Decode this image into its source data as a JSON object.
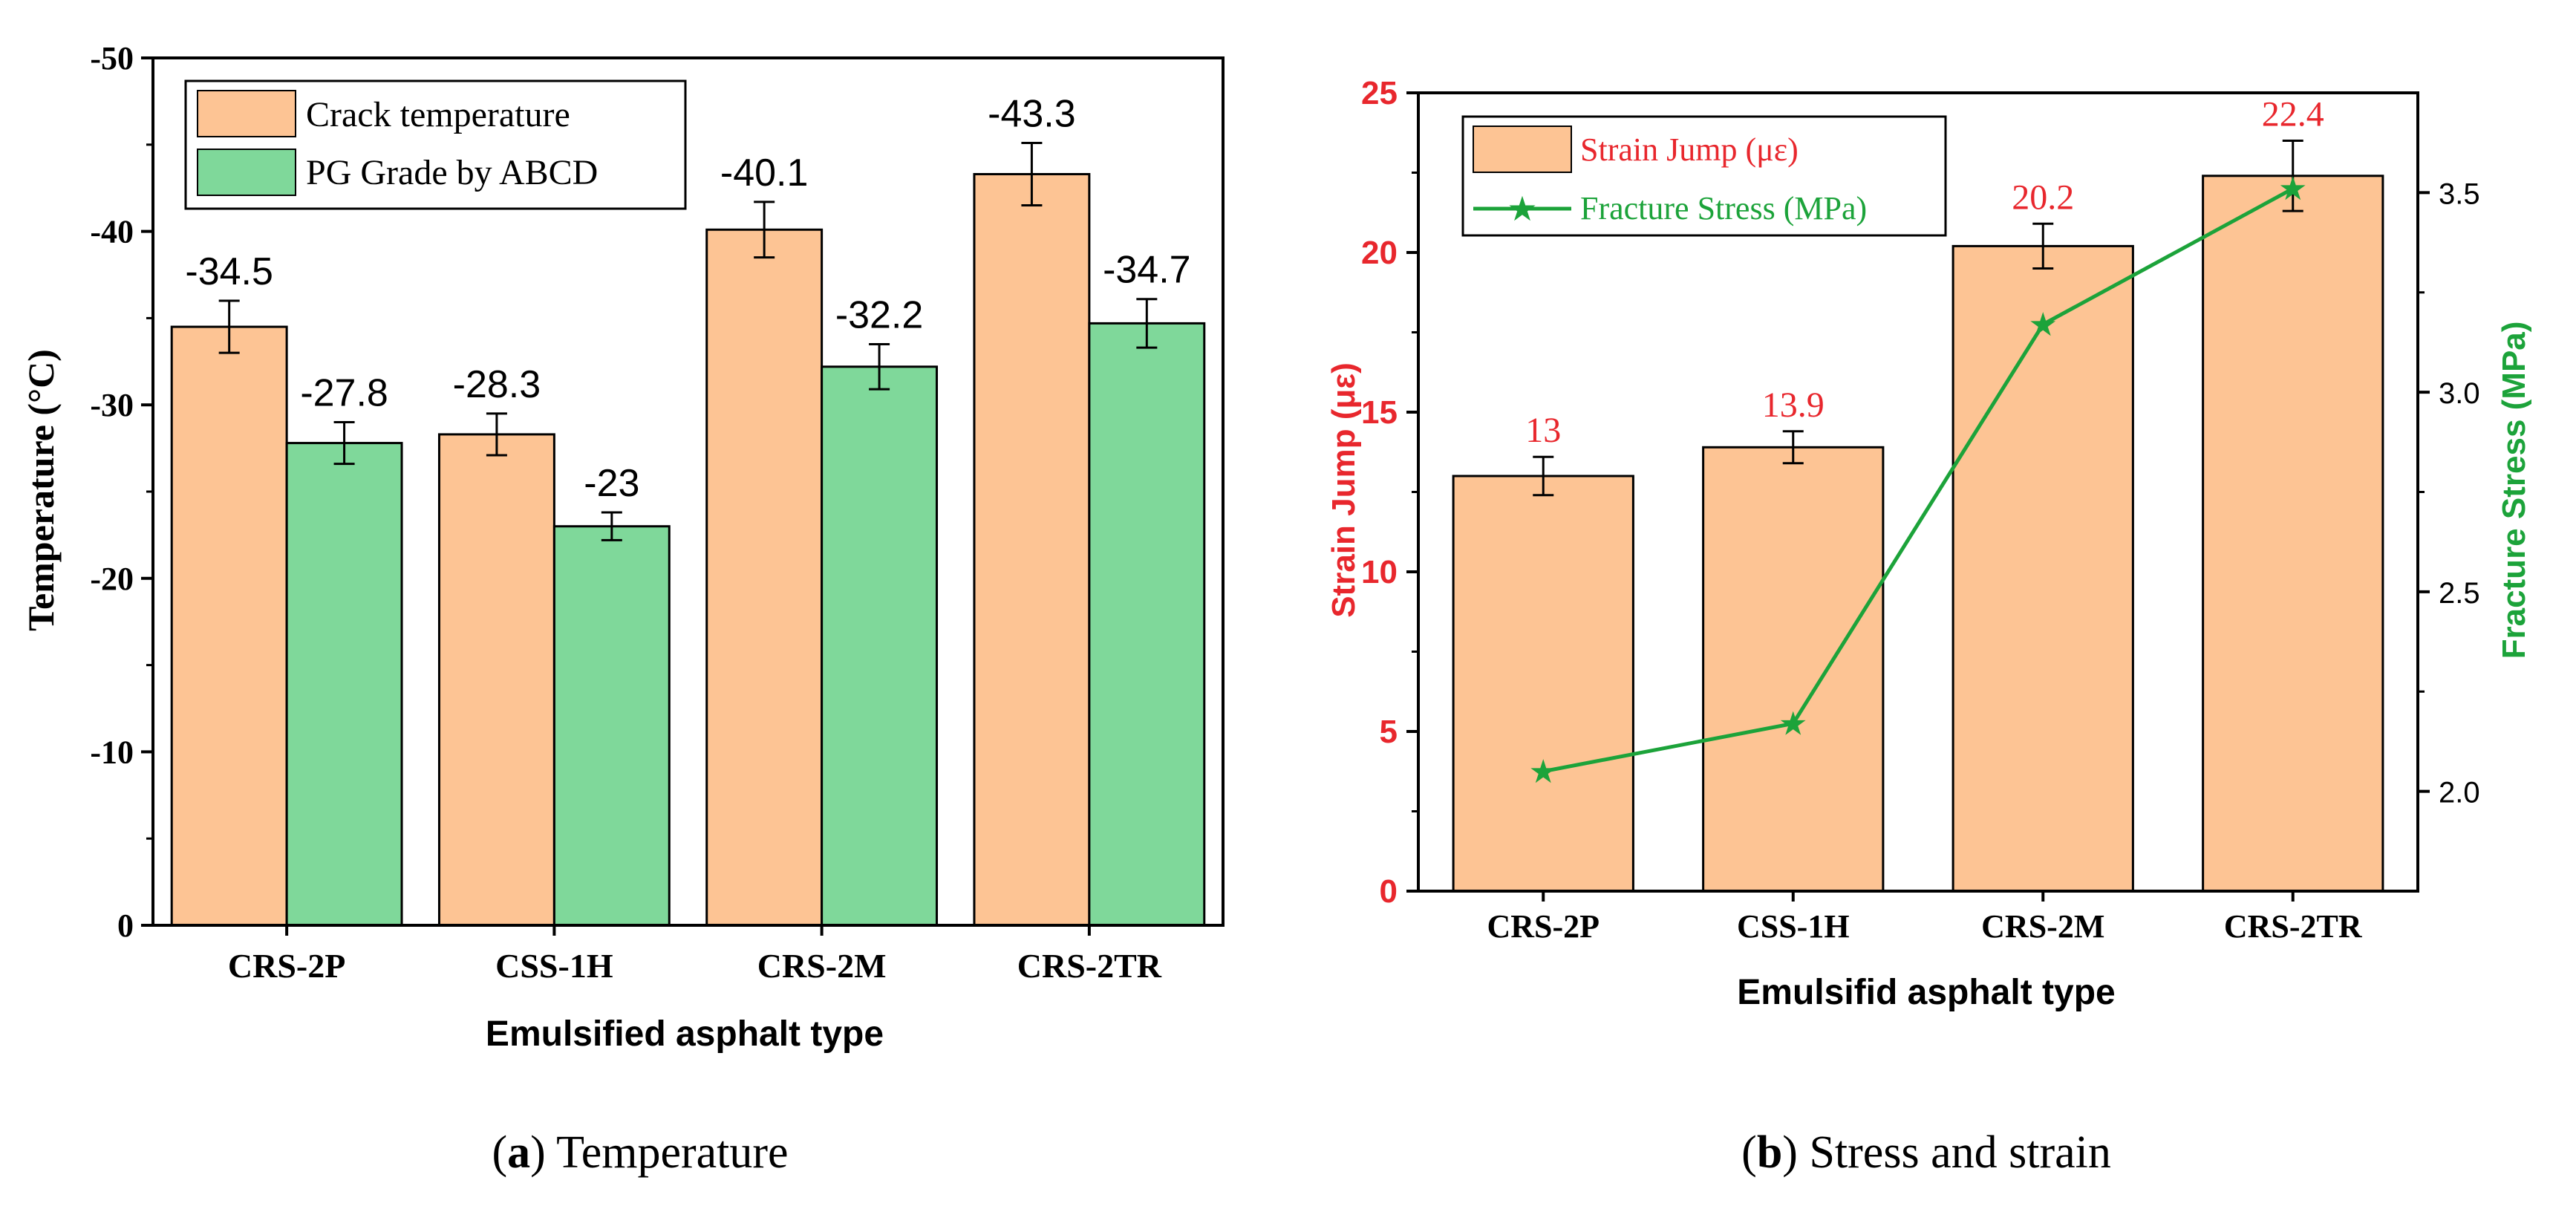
{
  "chart_data": [
    {
      "type": "bar",
      "title": "",
      "xlabel": "Emulsified asphalt type",
      "ylabel": "Temperature (°C)",
      "ylim": [
        0,
        -50
      ],
      "y_ticks": [
        "0",
        "-10",
        "-20",
        "-30",
        "-40",
        "-50"
      ],
      "y_tick_values": [
        0,
        -10,
        -20,
        -30,
        -40,
        -50
      ],
      "categories": [
        "CRS-2P",
        "CSS-1H",
        "CRS-2M",
        "CRS-2TR"
      ],
      "series": [
        {
          "name": "Crack temperature",
          "values": [
            -34.5,
            -28.3,
            -40.1,
            -43.3
          ],
          "labels": [
            "-34.5",
            "-28.3",
            "-40.1",
            "-43.3"
          ],
          "errors": [
            1.5,
            1.2,
            1.6,
            1.8
          ],
          "color": "#FDC494"
        },
        {
          "name": "PG Grade by ABCD",
          "values": [
            -27.8,
            -23,
            -32.2,
            -34.7
          ],
          "labels": [
            "-27.8",
            "-23",
            "-32.2",
            "-34.7"
          ],
          "errors": [
            1.2,
            0.8,
            1.3,
            1.4
          ],
          "color": "#7FD89A"
        }
      ],
      "legend_position": "top-left",
      "caption_bold": "a",
      "caption_text": " Temperature"
    },
    {
      "type": "bar",
      "title": "",
      "xlabel": "Emulsifid asphalt type",
      "ylabel": "Strain Jump (με)",
      "y2label": "Fracture Stress (MPa)",
      "ylim": [
        0,
        25
      ],
      "y_ticks": [
        "0",
        "5",
        "10",
        "15",
        "20",
        "25"
      ],
      "y_tick_values": [
        0,
        5,
        10,
        15,
        20,
        25
      ],
      "y2lim": [
        1.75,
        3.75
      ],
      "y2_ticks": [
        "2.0",
        "2.5",
        "3.0",
        "3.5"
      ],
      "y2_tick_values": [
        2.0,
        2.5,
        3.0,
        3.5
      ],
      "categories": [
        "CRS-2P",
        "CSS-1H",
        "CRS-2M",
        "CRS-2TR"
      ],
      "series": [
        {
          "name": "Strain Jump (με)",
          "type": "bar",
          "values": [
            13,
            13.9,
            20.2,
            22.4
          ],
          "labels": [
            "13",
            "13.9",
            "20.2",
            "22.4"
          ],
          "errors": [
            0.6,
            0.5,
            0.7,
            1.1
          ],
          "color": "#FDC494"
        },
        {
          "name": "Fracture Stress (MPa)",
          "type": "line",
          "axis": "right",
          "values": [
            2.05,
            2.17,
            3.17,
            3.51
          ],
          "color": "#1CA33A"
        }
      ],
      "label_color": "#E8272D",
      "left_axis_color": "#E8272D",
      "right_axis_color": "#1CA33A",
      "legend_position": "top-left",
      "caption_bold": "b",
      "caption_text": " Stress and strain"
    }
  ]
}
